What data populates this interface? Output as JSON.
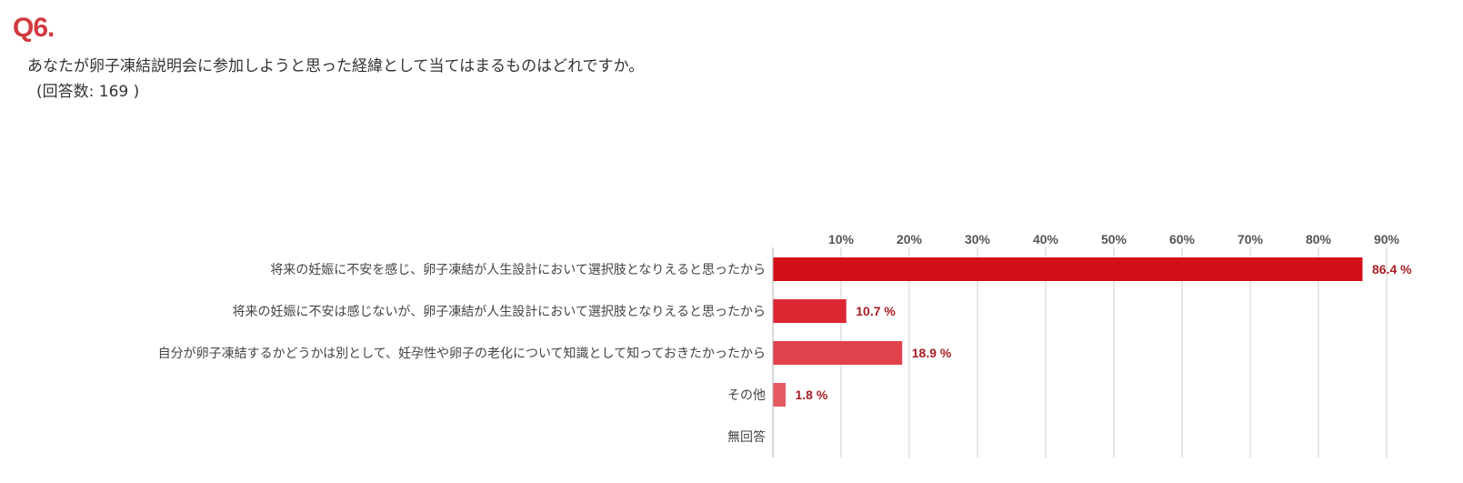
{
  "question": {
    "number": "Q6.",
    "text": "あなたが卵子凍結説明会に参加しようと思った経緯として当てはまるものはどれですか。",
    "response_count": "(回答数: 169 )"
  },
  "colors": {
    "accent": "#d03a3f",
    "bars": [
      "#d50f1a",
      "#dc2733",
      "#e0414a",
      "#e55a61",
      "#e97176"
    ],
    "value_label": "#a81e25"
  },
  "chart_data": {
    "type": "bar",
    "orientation": "horizontal",
    "title": "",
    "xlabel": "",
    "ylabel": "",
    "categories": [
      "将来の妊娠に不安を感じ、卵子凍結が人生設計において選択肢となりえると思ったから",
      "将来の妊娠に不安は感じないが、卵子凍結が人生設計において選択肢となりえると思ったから",
      "自分が卵子凍結するかどうかは別として、妊孕性や卵子の老化について知識として知っておきたかったから",
      "その他",
      "無回答"
    ],
    "values": [
      86.4,
      10.7,
      18.9,
      1.8,
      null
    ],
    "value_labels": [
      "86.4 %",
      "10.7 %",
      "18.9 %",
      "1.8 %",
      ""
    ],
    "xlim": [
      0,
      95
    ],
    "ticks": [
      10,
      20,
      30,
      40,
      50,
      60,
      70,
      80,
      90
    ],
    "tick_labels": [
      "10%",
      "20%",
      "30%",
      "40%",
      "50%",
      "60%",
      "70%",
      "80%",
      "90%"
    ],
    "tick_position": "top",
    "grid": true,
    "legend": "none"
  }
}
